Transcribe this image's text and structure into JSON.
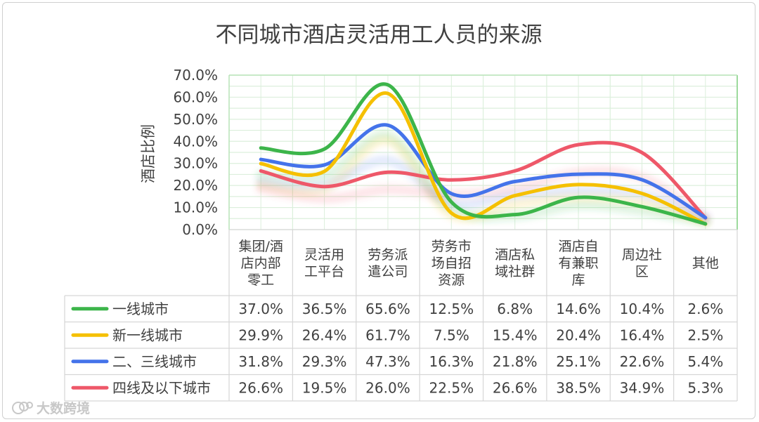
{
  "chart_data": {
    "type": "line",
    "title": "不同城市酒店灵活用工人员的来源",
    "xlabel": "",
    "ylabel": "酒店比例",
    "ylim": [
      0,
      70
    ],
    "y_ticks": [
      "0.0%",
      "10.0%",
      "20.0%",
      "30.0%",
      "40.0%",
      "50.0%",
      "60.0%",
      "70.0%"
    ],
    "categories": [
      [
        "集团/酒",
        "店内部",
        "零工"
      ],
      [
        "灵活用",
        "工平台"
      ],
      [
        "劳务派",
        "遣公司"
      ],
      [
        "劳务市",
        "场自招",
        "资源"
      ],
      [
        "酒店私",
        "域社群"
      ],
      [
        "酒店自",
        "有兼职",
        "库"
      ],
      [
        "周边社",
        "区"
      ],
      [
        "其他"
      ]
    ],
    "series": [
      {
        "name": "一线城市",
        "color": "#3cb54a",
        "values": [
          37.0,
          36.5,
          65.6,
          12.5,
          6.8,
          14.6,
          10.4,
          2.6
        ],
        "labels": [
          "37.0%",
          "36.5%",
          "65.6%",
          "12.5%",
          "6.8%",
          "14.6%",
          "10.4%",
          "2.6%"
        ]
      },
      {
        "name": "新一线城市",
        "color": "#f5c000",
        "values": [
          29.9,
          26.4,
          61.7,
          7.5,
          15.4,
          20.4,
          16.4,
          2.5
        ],
        "labels": [
          "29.9%",
          "26.4%",
          "61.7%",
          "7.5%",
          "15.4%",
          "20.4%",
          "16.4%",
          "2.5%"
        ]
      },
      {
        "name": "二、三线城市",
        "color": "#4473ea",
        "values": [
          31.8,
          29.3,
          47.3,
          16.3,
          21.8,
          25.1,
          22.6,
          5.4
        ],
        "labels": [
          "31.8%",
          "29.3%",
          "47.3%",
          "16.3%",
          "21.8%",
          "25.1%",
          "22.6%",
          "5.4%"
        ]
      },
      {
        "name": "四线及以下城市",
        "color": "#ee5869",
        "values": [
          26.6,
          19.5,
          26.0,
          22.5,
          26.6,
          38.5,
          34.9,
          5.3
        ],
        "labels": [
          "26.6%",
          "19.5%",
          "26.0%",
          "22.5%",
          "26.6%",
          "38.5%",
          "34.9%",
          "5.3%"
        ]
      }
    ],
    "grid": true,
    "legend": "bottom-table"
  },
  "watermark": "大数跨境"
}
